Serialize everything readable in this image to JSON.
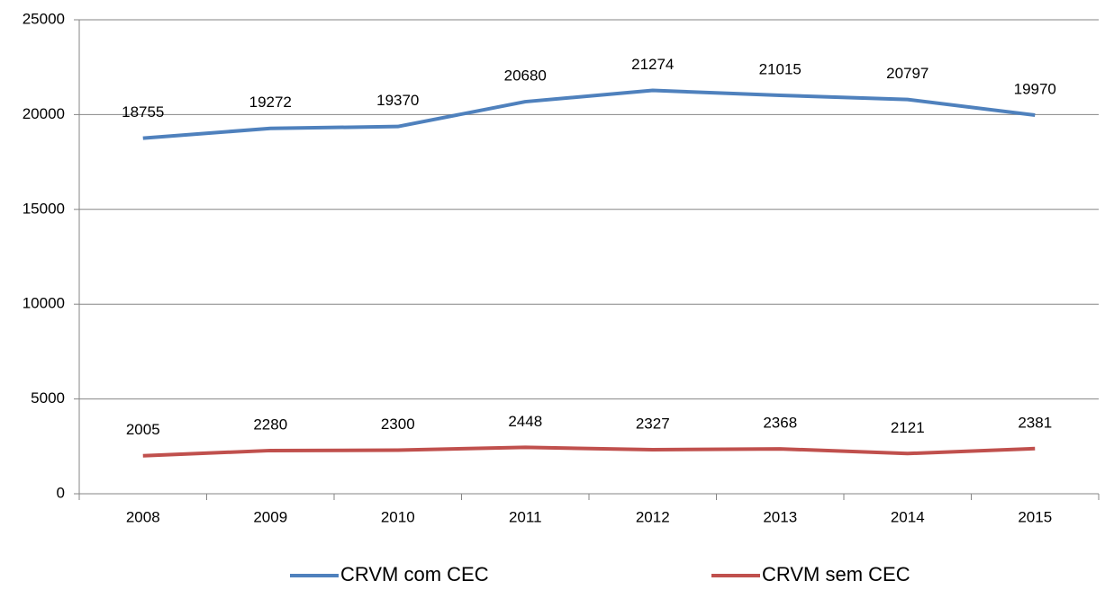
{
  "chart_data": {
    "type": "line",
    "categories": [
      "2008",
      "2009",
      "2010",
      "2011",
      "2012",
      "2013",
      "2014",
      "2015"
    ],
    "series": [
      {
        "name": "CRVM com CEC",
        "color": "#4f81bd",
        "values": [
          18755,
          19272,
          19370,
          20680,
          21274,
          21015,
          20797,
          19970
        ]
      },
      {
        "name": "CRVM sem CEC",
        "color": "#c0504d",
        "values": [
          2005,
          2280,
          2300,
          2448,
          2327,
          2368,
          2121,
          2381
        ]
      }
    ],
    "ylim": [
      0,
      25000
    ],
    "yticks": [
      0,
      5000,
      10000,
      15000,
      20000,
      25000
    ],
    "grid": true,
    "legend": "bottom"
  }
}
